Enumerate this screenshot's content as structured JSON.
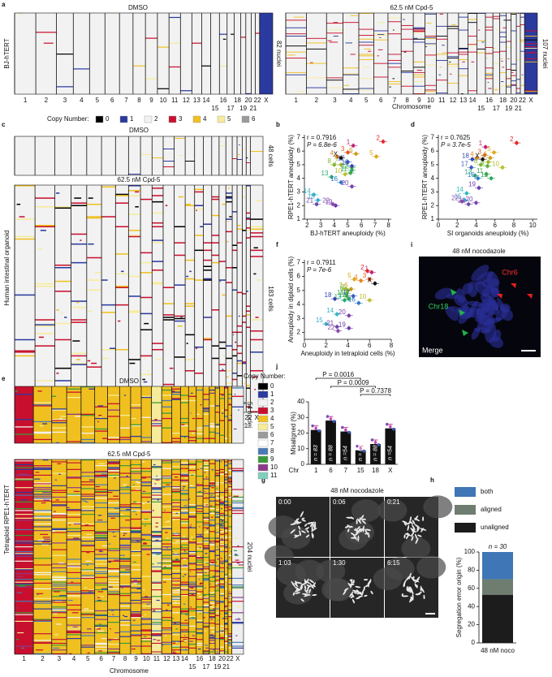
{
  "figure": {
    "letters": [
      "a",
      "b",
      "c",
      "d",
      "e",
      "f",
      "g",
      "h",
      "i",
      "j"
    ],
    "chromosomes": [
      "1",
      "2",
      "3",
      "4",
      "5",
      "6",
      "7",
      "8",
      "9",
      "10",
      "11",
      "12",
      "13",
      "14",
      "15",
      "16",
      "17",
      "18",
      "19",
      "20",
      "21",
      "22",
      "X"
    ],
    "chromosome_axis": "Chromosome",
    "a": {
      "row_label": "BJ-hTERT",
      "left_title": "DMSO",
      "left_count": "82 nuclei",
      "right_title": "62.5 nM Cpd-5",
      "right_count": "107 nuclei"
    },
    "copy_legend_a": {
      "title": "Copy Number:",
      "labels": [
        "0",
        "1",
        "2",
        "3",
        "4",
        "5",
        "6"
      ],
      "colors": [
        "#000000",
        "#2b3a9e",
        "#f2f2f2",
        "#c8102e",
        "#f0c020",
        "#f6eb9a",
        "#9a9a9a"
      ]
    },
    "c": {
      "row_label": "Human intestinal organoid",
      "top_title": "DMSO",
      "top_count": "48 cells",
      "bottom_title": "62.5 nM Cpd-5",
      "bottom_count": "183 cells"
    },
    "e": {
      "row_label": "Tetraploid RPE1-hTERT",
      "top_title": "DMSO",
      "top_count": "54 nuclei",
      "bottom_title": "62.5 nM Cpd-5",
      "bottom_count": "204 nuclei"
    },
    "copy_legend_e": {
      "title": "Copy Number:",
      "labels": [
        "0",
        "1",
        "2",
        "3",
        "4",
        "5",
        "6",
        "7",
        "8",
        "9",
        "10",
        "11"
      ],
      "colors": [
        "#000000",
        "#2b3a9e",
        "#f2f2f2",
        "#c8102e",
        "#f0c020",
        "#f6eb9a",
        "#9a9a9a",
        "#ffffff",
        "#4a7ab5",
        "#3a9a3a",
        "#8a3a8a",
        "#7fcfbc"
      ]
    },
    "g": {
      "title": "48 nM nocodazole",
      "times": [
        "0:00",
        "0:06",
        "0:21",
        "1:03",
        "1:30",
        "6:15"
      ]
    },
    "i": {
      "title": "48 nM nocodazole",
      "green_label": "Chr18",
      "red_label": "Chr6",
      "channel": "Merge"
    }
  },
  "chromosome_colors": [
    "#c2227a",
    "#e0282e",
    "#e4521f",
    "#e8801c",
    "#e0a818",
    "#c99a14",
    "#9cb82a",
    "#7cb82e",
    "#5cb040",
    "#b8c030",
    "#3aa84a",
    "#2ea860",
    "#28a870",
    "#30b8c0",
    "#3aa8d0",
    "#2e7ac8",
    "#3a5cc0",
    "#3048b0",
    "#6a3ab0",
    "#7a40b0",
    "#6a48a8",
    "#8a4aa8",
    "#111111"
  ],
  "chart_data": [
    {
      "type": "scatter",
      "annotations": [
        "r = 0.7916",
        "P = 6.8e-6"
      ],
      "xlabel": "BJ-hTERT aneuploidy (%)",
      "ylabel": "RPE1-hTERT aneuploidy (%)",
      "labels": [
        "1",
        "2",
        "3",
        "4",
        "5",
        "6",
        "7",
        "8",
        "9",
        "10",
        "11",
        "12",
        "13",
        "14",
        "15",
        "16",
        "17",
        "18",
        "19",
        "20",
        "21",
        "22",
        "X"
      ],
      "x": [
        5.4,
        7.6,
        5.0,
        4.2,
        7.1,
        5.6,
        4.5,
        4.0,
        5.3,
        4.8,
        5.2,
        5.3,
        3.8,
        2.5,
        2.8,
        4.5,
        5.0,
        5.3,
        4.1,
        5.3,
        2.7,
        3.9,
        4.5
      ],
      "y": [
        6.4,
        6.7,
        5.9,
        5.6,
        5.6,
        5.8,
        5.0,
        5.0,
        4.8,
        4.3,
        4.4,
        4.6,
        4.1,
        2.8,
        2.4,
        3.7,
        5.2,
        4.9,
        2.0,
        3.4,
        2.1,
        2.1,
        5.5
      ],
      "xlim": [
        1.8,
        8.2
      ],
      "ylim": [
        1,
        7.2
      ],
      "xticks": [
        2,
        3,
        4,
        5,
        6,
        7,
        8
      ],
      "yticks": [
        1,
        2,
        3,
        4,
        5,
        6,
        7
      ]
    },
    {
      "type": "scatter",
      "annotations": [
        "r = 0.7625",
        "P = 3.7e-5"
      ],
      "xlabel": "SI organoids aneuploidy (%)",
      "ylabel": "RPE1-hTERT aneuploidy (%)",
      "labels": [
        "1",
        "2",
        "3",
        "4",
        "5",
        "6",
        "7",
        "8",
        "9",
        "10",
        "11",
        "12",
        "13",
        "14",
        "15",
        "16",
        "17",
        "18",
        "19",
        "20",
        "21",
        "22",
        "X"
      ],
      "x": [
        5.0,
        8.3,
        4.9,
        4.1,
        5.9,
        5.5,
        5.3,
        4.5,
        5.2,
        6.8,
        5.1,
        5.6,
        3.9,
        3.0,
        2.8,
        4.2,
        3.5,
        3.6,
        4.3,
        4.0,
        3.2,
        2.5,
        4.7
      ],
      "y": [
        6.3,
        6.6,
        5.7,
        5.5,
        5.9,
        5.5,
        5.2,
        5.0,
        4.9,
        4.8,
        4.3,
        4.0,
        4.2,
        2.9,
        2.4,
        4.0,
        4.8,
        5.4,
        3.3,
        2.2,
        2.1,
        2.3,
        5.4
      ],
      "xlim": [
        0,
        10.5
      ],
      "ylim": [
        1,
        7.2
      ],
      "xticks": [
        0,
        2,
        4,
        6,
        8,
        10
      ],
      "yticks": [
        1,
        2,
        3,
        4,
        5,
        6,
        7
      ]
    },
    {
      "type": "scatter",
      "annotations": [
        "r = 0.7911",
        "P = 7e-6"
      ],
      "xlabel": "Aneuploidy in tetraploid cells (%)",
      "ylabel": "Aneuploidy in diploid cells (%)",
      "labels": [
        "1",
        "2",
        "3",
        "4",
        "5",
        "6",
        "7",
        "8",
        "9",
        "10",
        "11",
        "12",
        "13",
        "14",
        "15",
        "16",
        "17",
        "18",
        "19",
        "20",
        "21",
        "22",
        "X"
      ],
      "x": [
        6.2,
        5.8,
        6.0,
        5.2,
        4.6,
        4.3,
        3.8,
        4.0,
        3.9,
        6.0,
        3.9,
        4.1,
        3.7,
        3.0,
        2.0,
        5.0,
        4.5,
        2.8,
        4.1,
        4.1,
        3.0,
        3.1,
        6.5
      ],
      "y": [
        6.3,
        6.4,
        5.8,
        5.7,
        5.8,
        5.1,
        5.1,
        5.0,
        4.8,
        4.3,
        4.6,
        4.4,
        4.3,
        3.3,
        2.6,
        4.1,
        4.6,
        4.4,
        2.3,
        3.2,
        2.4,
        2.1,
        5.5
      ],
      "xlim": [
        0,
        8
      ],
      "ylim": [
        1.5,
        7.2
      ],
      "xticks": [
        0,
        2,
        4,
        6,
        8
      ],
      "yticks": [
        2,
        3,
        4,
        5,
        6,
        7
      ]
    },
    {
      "type": "bar",
      "xlabel": "Chr",
      "ylabel": "Misaligned (%)",
      "categories": [
        "1",
        "6",
        "7",
        "15",
        "18",
        "X"
      ],
      "values": [
        22,
        28,
        21,
        9,
        13,
        23
      ],
      "color": "#111111",
      "annotations": [
        "n = 83",
        "n = 88",
        "n =54",
        "n = 83",
        "n = 88",
        "n =54"
      ],
      "brackets": [
        {
          "label": "P = 0.0016",
          "from": "1",
          "to": "15"
        },
        {
          "label": "P = 0.0009",
          "from": "6",
          "to": "18"
        },
        {
          "label": "P = 0.7378",
          "from": "15",
          "to": "X"
        }
      ],
      "ylim": [
        0,
        40
      ],
      "yticks": [
        0,
        10,
        20,
        30,
        40
      ]
    },
    {
      "type": "stacked_bar",
      "ylabel": "Segregation error origin (%)",
      "categories": [
        "48 nM noco"
      ],
      "annotations": [
        "n = 30"
      ],
      "series": [
        {
          "name": "unaligned",
          "color": "#1c1c1c",
          "values": [
            53
          ]
        },
        {
          "name": "aligned",
          "color": "#6f7d70",
          "values": [
            17
          ]
        },
        {
          "name": "both",
          "color": "#3f76b5",
          "values": [
            30
          ]
        }
      ],
      "ylim": [
        0,
        100
      ],
      "yticks": [
        0,
        20,
        40,
        60,
        80,
        100
      ]
    }
  ]
}
